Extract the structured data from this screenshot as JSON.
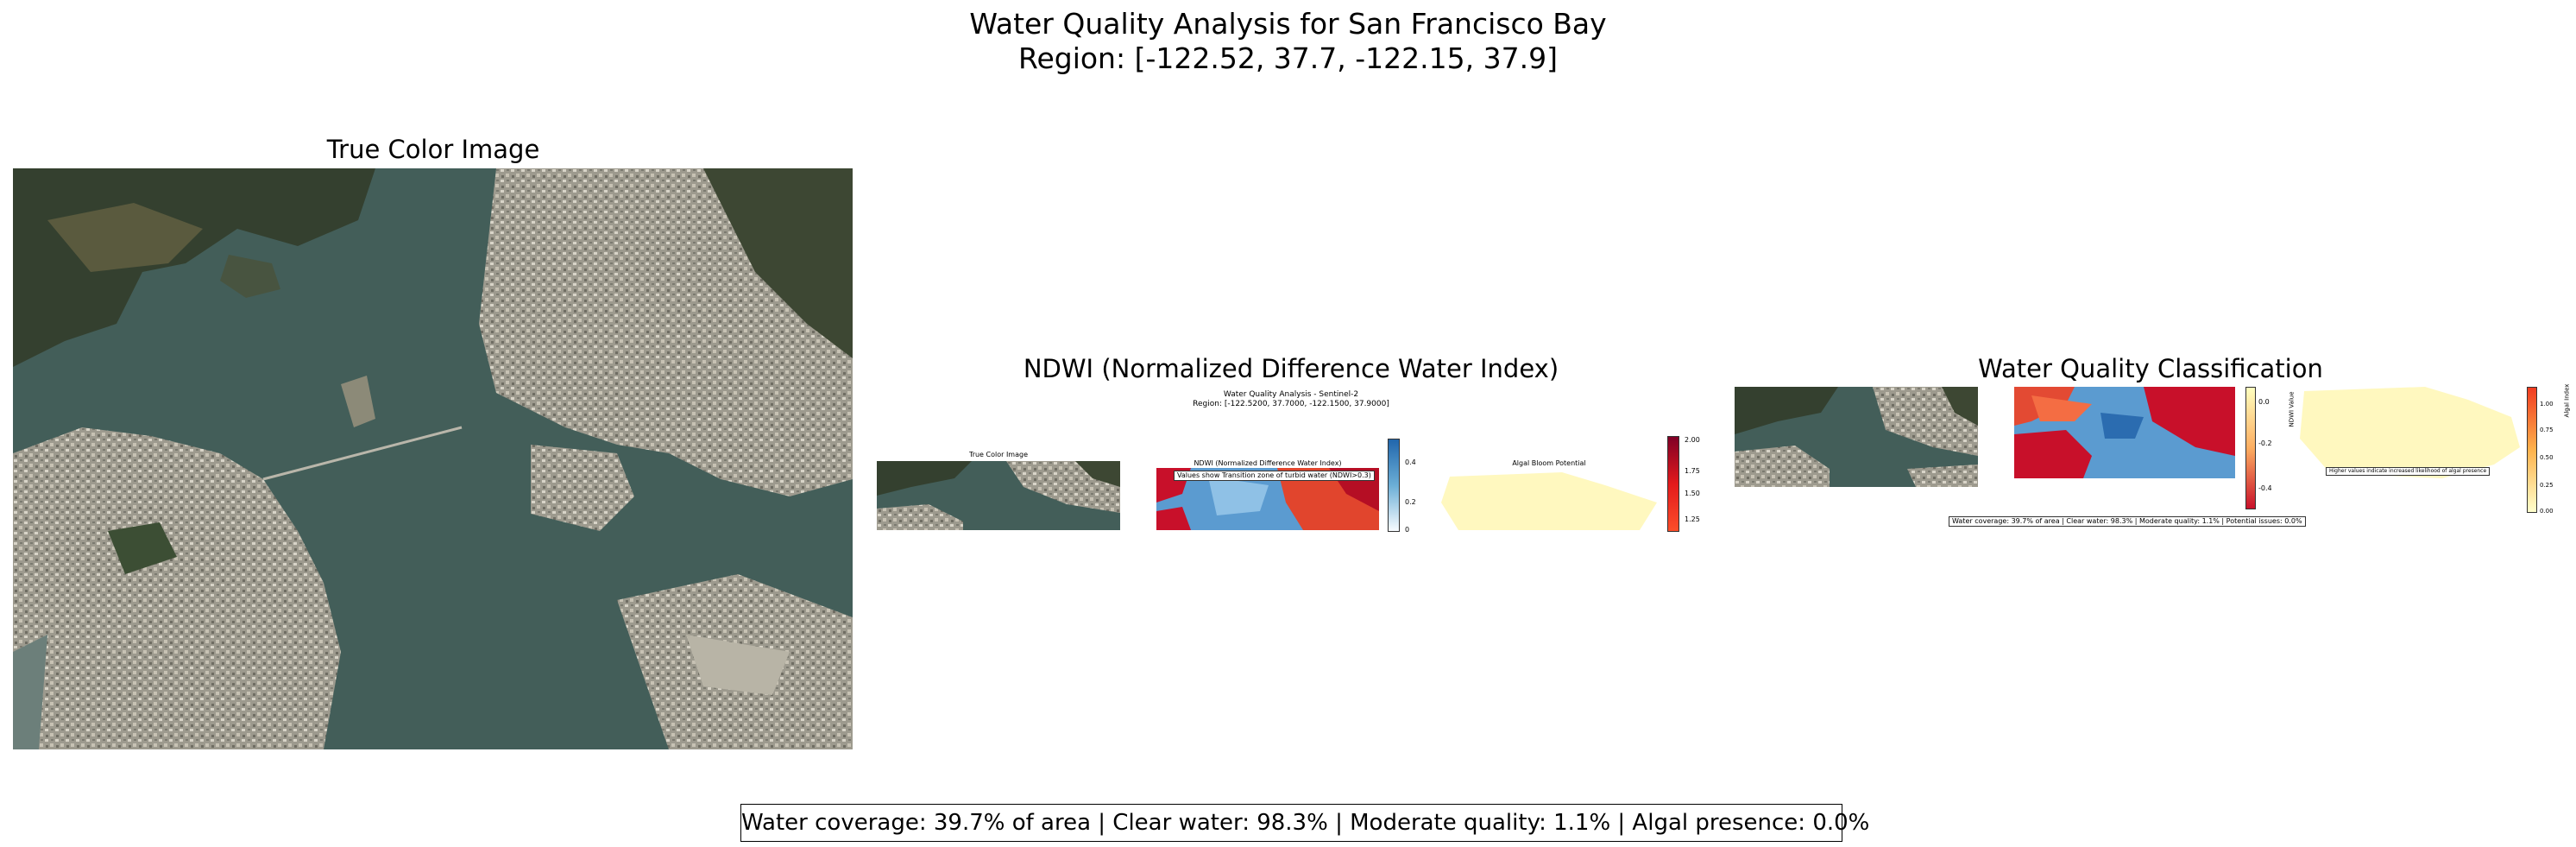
{
  "figure": {
    "title_line1": "Water Quality Analysis for San Francisco Bay",
    "title_line2": "Region: [-122.52, 37.7, -122.15, 37.9]"
  },
  "panels": {
    "true_color": {
      "title": "True Color Image"
    },
    "ndwi": {
      "title": "NDWI (Normalized Difference Water Index)"
    },
    "classification": {
      "title": "Water Quality Classification"
    }
  },
  "inset_ndwi": {
    "title_line1": "Water Quality Analysis - Sentinel-2",
    "title_line2": "Region: [-122.5200, 37.7000, -122.1500, 37.9000]",
    "true_color_title": "True Color Image",
    "ndwi_title": "NDWI (Normalized Difference Water Index)",
    "ndwi_note": "Values show Transition zone of turbid water (NDWI>0.3)",
    "algal_title": "Algal Bloom Potential",
    "ndwi_ticks": [
      "0.4",
      "0.2",
      "0"
    ],
    "algal_ticks": [
      "2.00",
      "1.75",
      "1.50",
      "1.25"
    ]
  },
  "inset_class": {
    "stats": "Water coverage: 39.7% of area | Clear water: 98.3% | Moderate quality: 1.1% | Potential issues: 0.0%",
    "ndwi_axis": "NDWI Value",
    "ndwi_ticks": [
      "0.0",
      "-0.2",
      "-0.4"
    ],
    "algal_note": "Higher values indicate increased likelihood of algal presence",
    "algal_axis": "Algal Index",
    "algal_ticks": [
      "1.00",
      "0.75",
      "0.50",
      "0.25",
      "0.00"
    ]
  },
  "stats_box": "Water coverage: 39.7% of area | Clear water: 98.3% | Moderate quality: 1.1% | Algal presence: 0.0%",
  "colors": {
    "water": "#3f5a55",
    "land_dark": "#2f3a2a",
    "urban": "#a9a598",
    "ndwi_red": "#c8102a",
    "ndwi_blue": "#5b9bd0",
    "algal": "#fff8bf"
  }
}
